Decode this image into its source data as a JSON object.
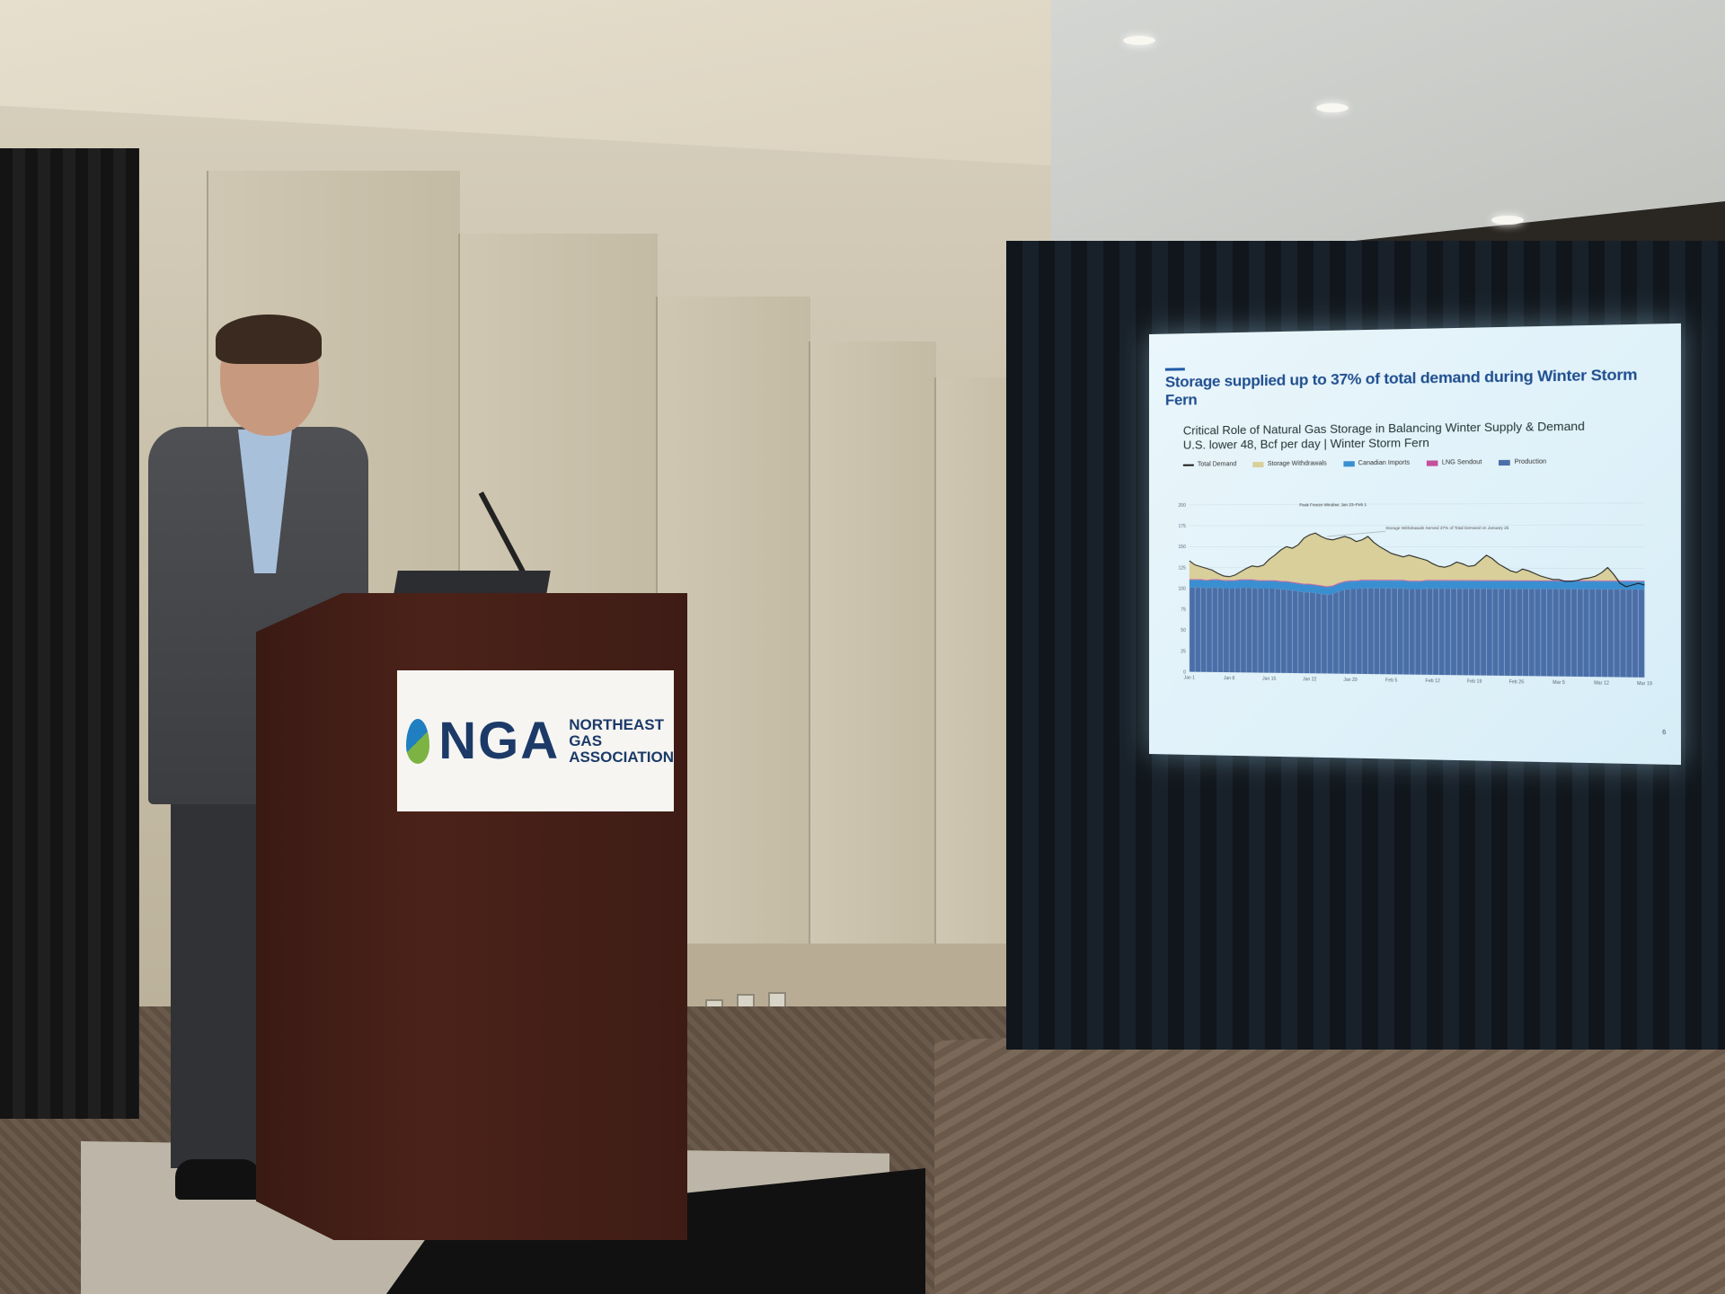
{
  "podium_sign": {
    "logo_text": "NGA",
    "org_line1": "NORTHEAST GAS",
    "org_line2": "ASSOCIATION",
    "colors": {
      "navy": "#1c3a68",
      "blue": "#1f7fc1",
      "green": "#7cb342"
    }
  },
  "slide": {
    "title": "Storage supplied up to 37% of total demand during Winter Storm Fern",
    "page_number": "6",
    "chart_data": {
      "type": "area",
      "title": "Critical Role of Natural Gas Storage in Balancing Winter Supply & Demand",
      "subtitle": "U.S. lower 48, Bcf per day | Winter Storm Fern",
      "legend": [
        {
          "name": "Total Demand",
          "color": "#1a1a1a"
        },
        {
          "name": "Storage Withdrawals",
          "color": "#d8cf9a"
        },
        {
          "name": "Canadian Imports",
          "color": "#3a8fd0"
        },
        {
          "name": "LNG Sendout",
          "color": "#c54f9a"
        },
        {
          "name": "Production",
          "color": "#4a6fa8"
        }
      ],
      "annotations": [
        {
          "text": "Peak Freeze Window: Jan 23–Feb 1"
        },
        {
          "text": "Storage Withdrawals Served 37% of Total Demand on January 25"
        }
      ],
      "x_ticks": [
        "Jan 1",
        "Jan 8",
        "Jan 15",
        "Jan 22",
        "Jan 29",
        "Feb 5",
        "Feb 12",
        "Feb 19",
        "Feb 26",
        "Mar 5",
        "Mar 12",
        "Mar 19"
      ],
      "y_ticks": [
        0,
        25,
        50,
        75,
        100,
        125,
        150,
        175,
        200
      ],
      "ylim": [
        0,
        200
      ],
      "production": [
        101,
        101,
        101,
        100,
        101,
        101,
        100,
        100,
        100,
        101,
        101,
        101,
        100,
        100,
        100,
        100,
        99,
        99,
        98,
        97,
        96,
        96,
        95,
        94,
        93,
        94,
        97,
        99,
        100,
        100,
        101,
        101,
        101,
        101,
        101,
        101,
        101,
        101,
        100,
        100,
        100,
        101,
        101,
        101,
        101,
        101,
        101,
        101,
        101,
        101,
        101,
        101,
        101,
        101,
        101,
        101,
        101,
        101,
        101,
        101,
        101,
        101,
        101,
        101,
        101,
        101,
        101,
        101,
        101,
        101,
        101,
        101,
        101,
        101,
        101,
        101,
        101,
        101
      ],
      "total_demand": [
        133,
        128,
        126,
        124,
        122,
        118,
        115,
        114,
        116,
        120,
        124,
        127,
        126,
        128,
        135,
        140,
        146,
        150,
        148,
        152,
        160,
        164,
        166,
        162,
        159,
        158,
        160,
        162,
        160,
        156,
        158,
        162,
        155,
        150,
        146,
        142,
        140,
        138,
        140,
        138,
        136,
        134,
        130,
        127,
        126,
        128,
        132,
        130,
        127,
        128,
        134,
        140,
        136,
        130,
        126,
        122,
        120,
        124,
        122,
        119,
        116,
        114,
        112,
        112,
        110,
        110,
        111,
        113,
        114,
        116,
        120,
        126,
        118,
        108,
        104,
        106,
        108,
        106
      ],
      "canadian_imports": 9,
      "lng_sendout": 1
    }
  }
}
